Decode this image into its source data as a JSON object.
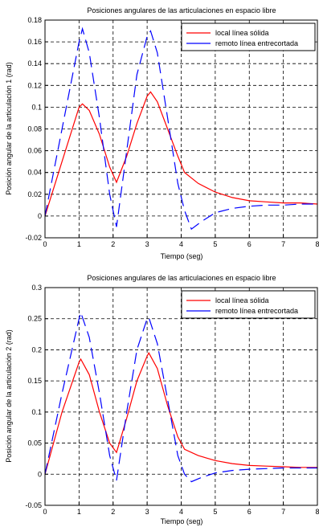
{
  "chart_data": [
    {
      "type": "line",
      "title": "Posiciones angulares de las articulaciones en espacio libre",
      "xlabel": "Tiempo (seg)",
      "ylabel": "Posición angular de la articulación 1 (rad)",
      "xlim": [
        0,
        8
      ],
      "ylim": [
        -0.02,
        0.18
      ],
      "xticks": [
        0,
        1,
        2,
        3,
        4,
        5,
        6,
        7,
        8
      ],
      "yticks": [
        -0.02,
        0,
        0.02,
        0.04,
        0.06,
        0.08,
        0.1,
        0.12,
        0.14,
        0.16,
        0.18
      ],
      "ytick_labels": [
        "-0.02",
        "0",
        "0.02",
        "0.04",
        "0.06",
        "0.08",
        "0.1",
        "0.12",
        "0.14",
        "0.16",
        "0.18"
      ],
      "grid": true,
      "legend_position": "top-right",
      "series": [
        {
          "name": "local línea sólida",
          "color": "#ff0000",
          "style": "solid",
          "x": [
            0,
            0.5,
            1.0,
            1.1,
            1.3,
            1.6,
            1.9,
            2.1,
            2.4,
            2.7,
            3.0,
            3.1,
            3.3,
            3.6,
            3.9,
            4.1,
            4.5,
            5.0,
            5.5,
            6.0,
            6.5,
            7.0,
            7.5,
            8.0
          ],
          "y": [
            0,
            0.05,
            0.1,
            0.103,
            0.097,
            0.075,
            0.045,
            0.031,
            0.055,
            0.085,
            0.11,
            0.114,
            0.105,
            0.08,
            0.055,
            0.04,
            0.03,
            0.022,
            0.017,
            0.014,
            0.013,
            0.012,
            0.012,
            0.011
          ]
        },
        {
          "name": "remoto línea entrecortada",
          "color": "#0000ff",
          "style": "dashed",
          "x": [
            0,
            0.5,
            1.0,
            1.1,
            1.3,
            1.6,
            1.9,
            2.1,
            2.4,
            2.7,
            3.0,
            3.1,
            3.3,
            3.6,
            3.9,
            4.1,
            4.3,
            4.6,
            5.0,
            5.5,
            6.0,
            6.5,
            7.0,
            7.5,
            8.0
          ],
          "y": [
            0,
            0.08,
            0.16,
            0.172,
            0.15,
            0.09,
            0.02,
            -0.01,
            0.06,
            0.13,
            0.165,
            0.17,
            0.15,
            0.09,
            0.03,
            0.005,
            -0.012,
            -0.005,
            0.003,
            0.007,
            0.009,
            0.01,
            0.01,
            0.011,
            0.011
          ]
        }
      ]
    },
    {
      "type": "line",
      "title": "Posiciones angulares de las articulaciones en espacio libre",
      "xlabel": "Tiempo (seg)",
      "ylabel": "Posición angular de la articulación 2 (rad)",
      "xlim": [
        0,
        8
      ],
      "ylim": [
        -0.05,
        0.3
      ],
      "xticks": [
        0,
        1,
        2,
        3,
        4,
        5,
        6,
        7,
        8
      ],
      "yticks": [
        -0.05,
        0,
        0.05,
        0.1,
        0.15,
        0.2,
        0.25,
        0.3
      ],
      "ytick_labels": [
        "-0.05",
        "0",
        "0.05",
        "0.1",
        "0.15",
        "0.2",
        "0.25",
        "0.3"
      ],
      "grid": true,
      "legend_position": "top-right",
      "series": [
        {
          "name": "local línea sólida",
          "color": "#ff0000",
          "style": "solid",
          "x": [
            0,
            0.5,
            1.0,
            1.05,
            1.3,
            1.6,
            1.9,
            2.1,
            2.4,
            2.7,
            3.0,
            3.05,
            3.3,
            3.6,
            3.9,
            4.1,
            4.5,
            5.0,
            5.5,
            6.0,
            6.5,
            7.0,
            7.5,
            8.0
          ],
          "y": [
            0,
            0.1,
            0.18,
            0.185,
            0.16,
            0.1,
            0.05,
            0.035,
            0.09,
            0.15,
            0.19,
            0.195,
            0.17,
            0.11,
            0.06,
            0.04,
            0.03,
            0.022,
            0.017,
            0.014,
            0.013,
            0.012,
            0.011,
            0.011
          ]
        },
        {
          "name": "remoto línea entrecortada",
          "color": "#0000ff",
          "style": "dashed",
          "x": [
            0,
            0.5,
            1.0,
            1.05,
            1.3,
            1.6,
            1.9,
            2.1,
            2.4,
            2.7,
            3.0,
            3.05,
            3.3,
            3.6,
            3.9,
            4.1,
            4.3,
            4.6,
            5.0,
            5.5,
            6.0,
            6.5,
            7.0,
            7.5,
            8.0
          ],
          "y": [
            0,
            0.13,
            0.25,
            0.26,
            0.22,
            0.13,
            0.03,
            -0.01,
            0.1,
            0.2,
            0.25,
            0.252,
            0.21,
            0.12,
            0.03,
            0.0,
            -0.012,
            -0.005,
            0.002,
            0.006,
            0.008,
            0.009,
            0.01,
            0.01,
            0.01
          ]
        }
      ]
    }
  ]
}
